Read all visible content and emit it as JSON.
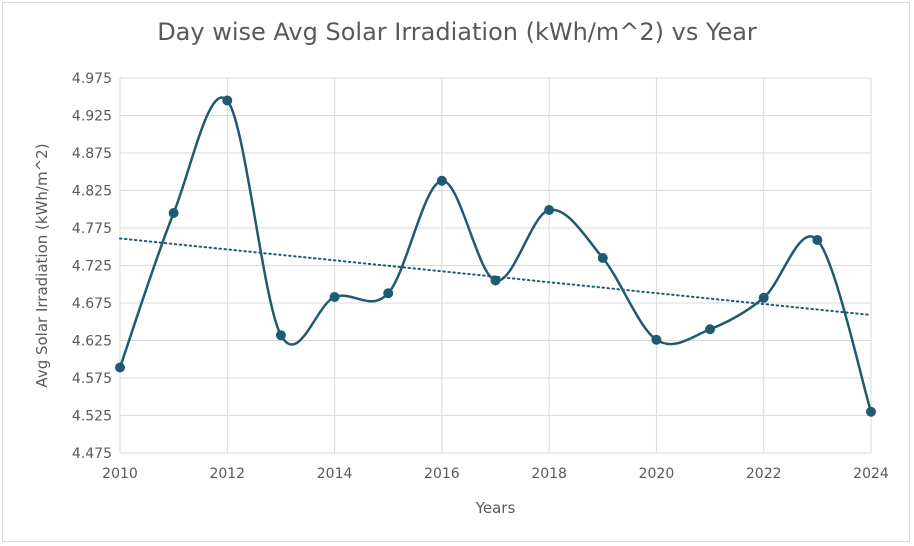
{
  "chart_data": {
    "type": "line",
    "title": "Day wise Avg Solar Irradiation (kWh/m^2) vs Year",
    "xlabel": "Years",
    "ylabel": "Avg Solar Irradiation (kWh/m^2)",
    "xlim": [
      2010,
      2024
    ],
    "ylim": [
      4.475,
      4.975
    ],
    "x_ticks": [
      2010,
      2012,
      2014,
      2016,
      2018,
      2020,
      2022,
      2024
    ],
    "y_ticks": [
      "4.475",
      "4.525",
      "4.575",
      "4.625",
      "4.675",
      "4.725",
      "4.775",
      "4.825",
      "4.875",
      "4.925",
      "4.975"
    ],
    "grid": true,
    "series": [
      {
        "name": "Avg Solar Irradiation",
        "color": "#1f5a73",
        "smooth": true,
        "x": [
          2010,
          2011,
          2012,
          2013,
          2014,
          2015,
          2016,
          2017,
          2018,
          2019,
          2020,
          2021,
          2022,
          2023,
          2024
        ],
        "values": [
          4.589,
          4.795,
          4.945,
          4.632,
          4.683,
          4.688,
          4.838,
          4.705,
          4.799,
          4.735,
          4.626,
          4.64,
          4.682,
          4.759,
          4.53
        ]
      }
    ],
    "trendline": {
      "type": "linear",
      "color": "#1f5a73",
      "style": "dotted",
      "start": [
        2010,
        4.761
      ],
      "end": [
        2024,
        4.659
      ]
    }
  }
}
